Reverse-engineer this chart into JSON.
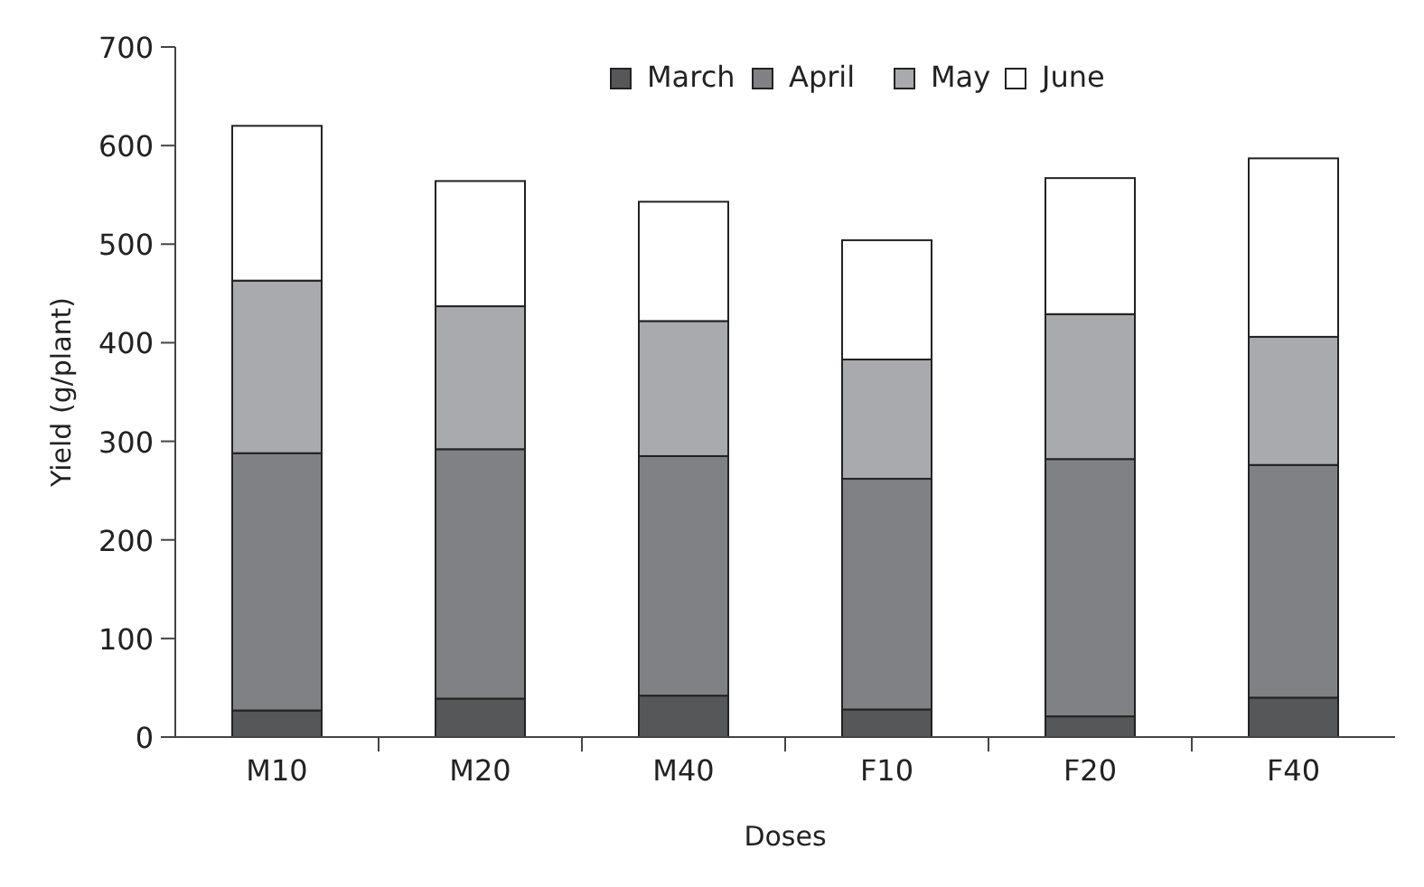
{
  "chart_data": {
    "type": "bar",
    "stacked": true,
    "xlabel": "Doses",
    "ylabel": "Yield (g/plant)",
    "categories": [
      "M10",
      "M20",
      "M40",
      "F10",
      "F20",
      "F40"
    ],
    "series": [
      {
        "name": "March",
        "color": "#555759",
        "values": [
          27,
          39,
          42,
          28,
          21,
          40
        ]
      },
      {
        "name": "April",
        "color": "#808185",
        "values": [
          261,
          253,
          243,
          234,
          261,
          236
        ]
      },
      {
        "name": "May",
        "color": "#a9aaad",
        "values": [
          175,
          145,
          137,
          121,
          147,
          130
        ]
      },
      {
        "name": "June",
        "color": "#ffffff",
        "values": [
          157,
          127,
          121,
          121,
          138,
          181
        ]
      }
    ],
    "ylim": [
      0,
      700
    ],
    "yticks": [
      0,
      100,
      200,
      300,
      400,
      500,
      600,
      700
    ],
    "legend": "top right"
  }
}
